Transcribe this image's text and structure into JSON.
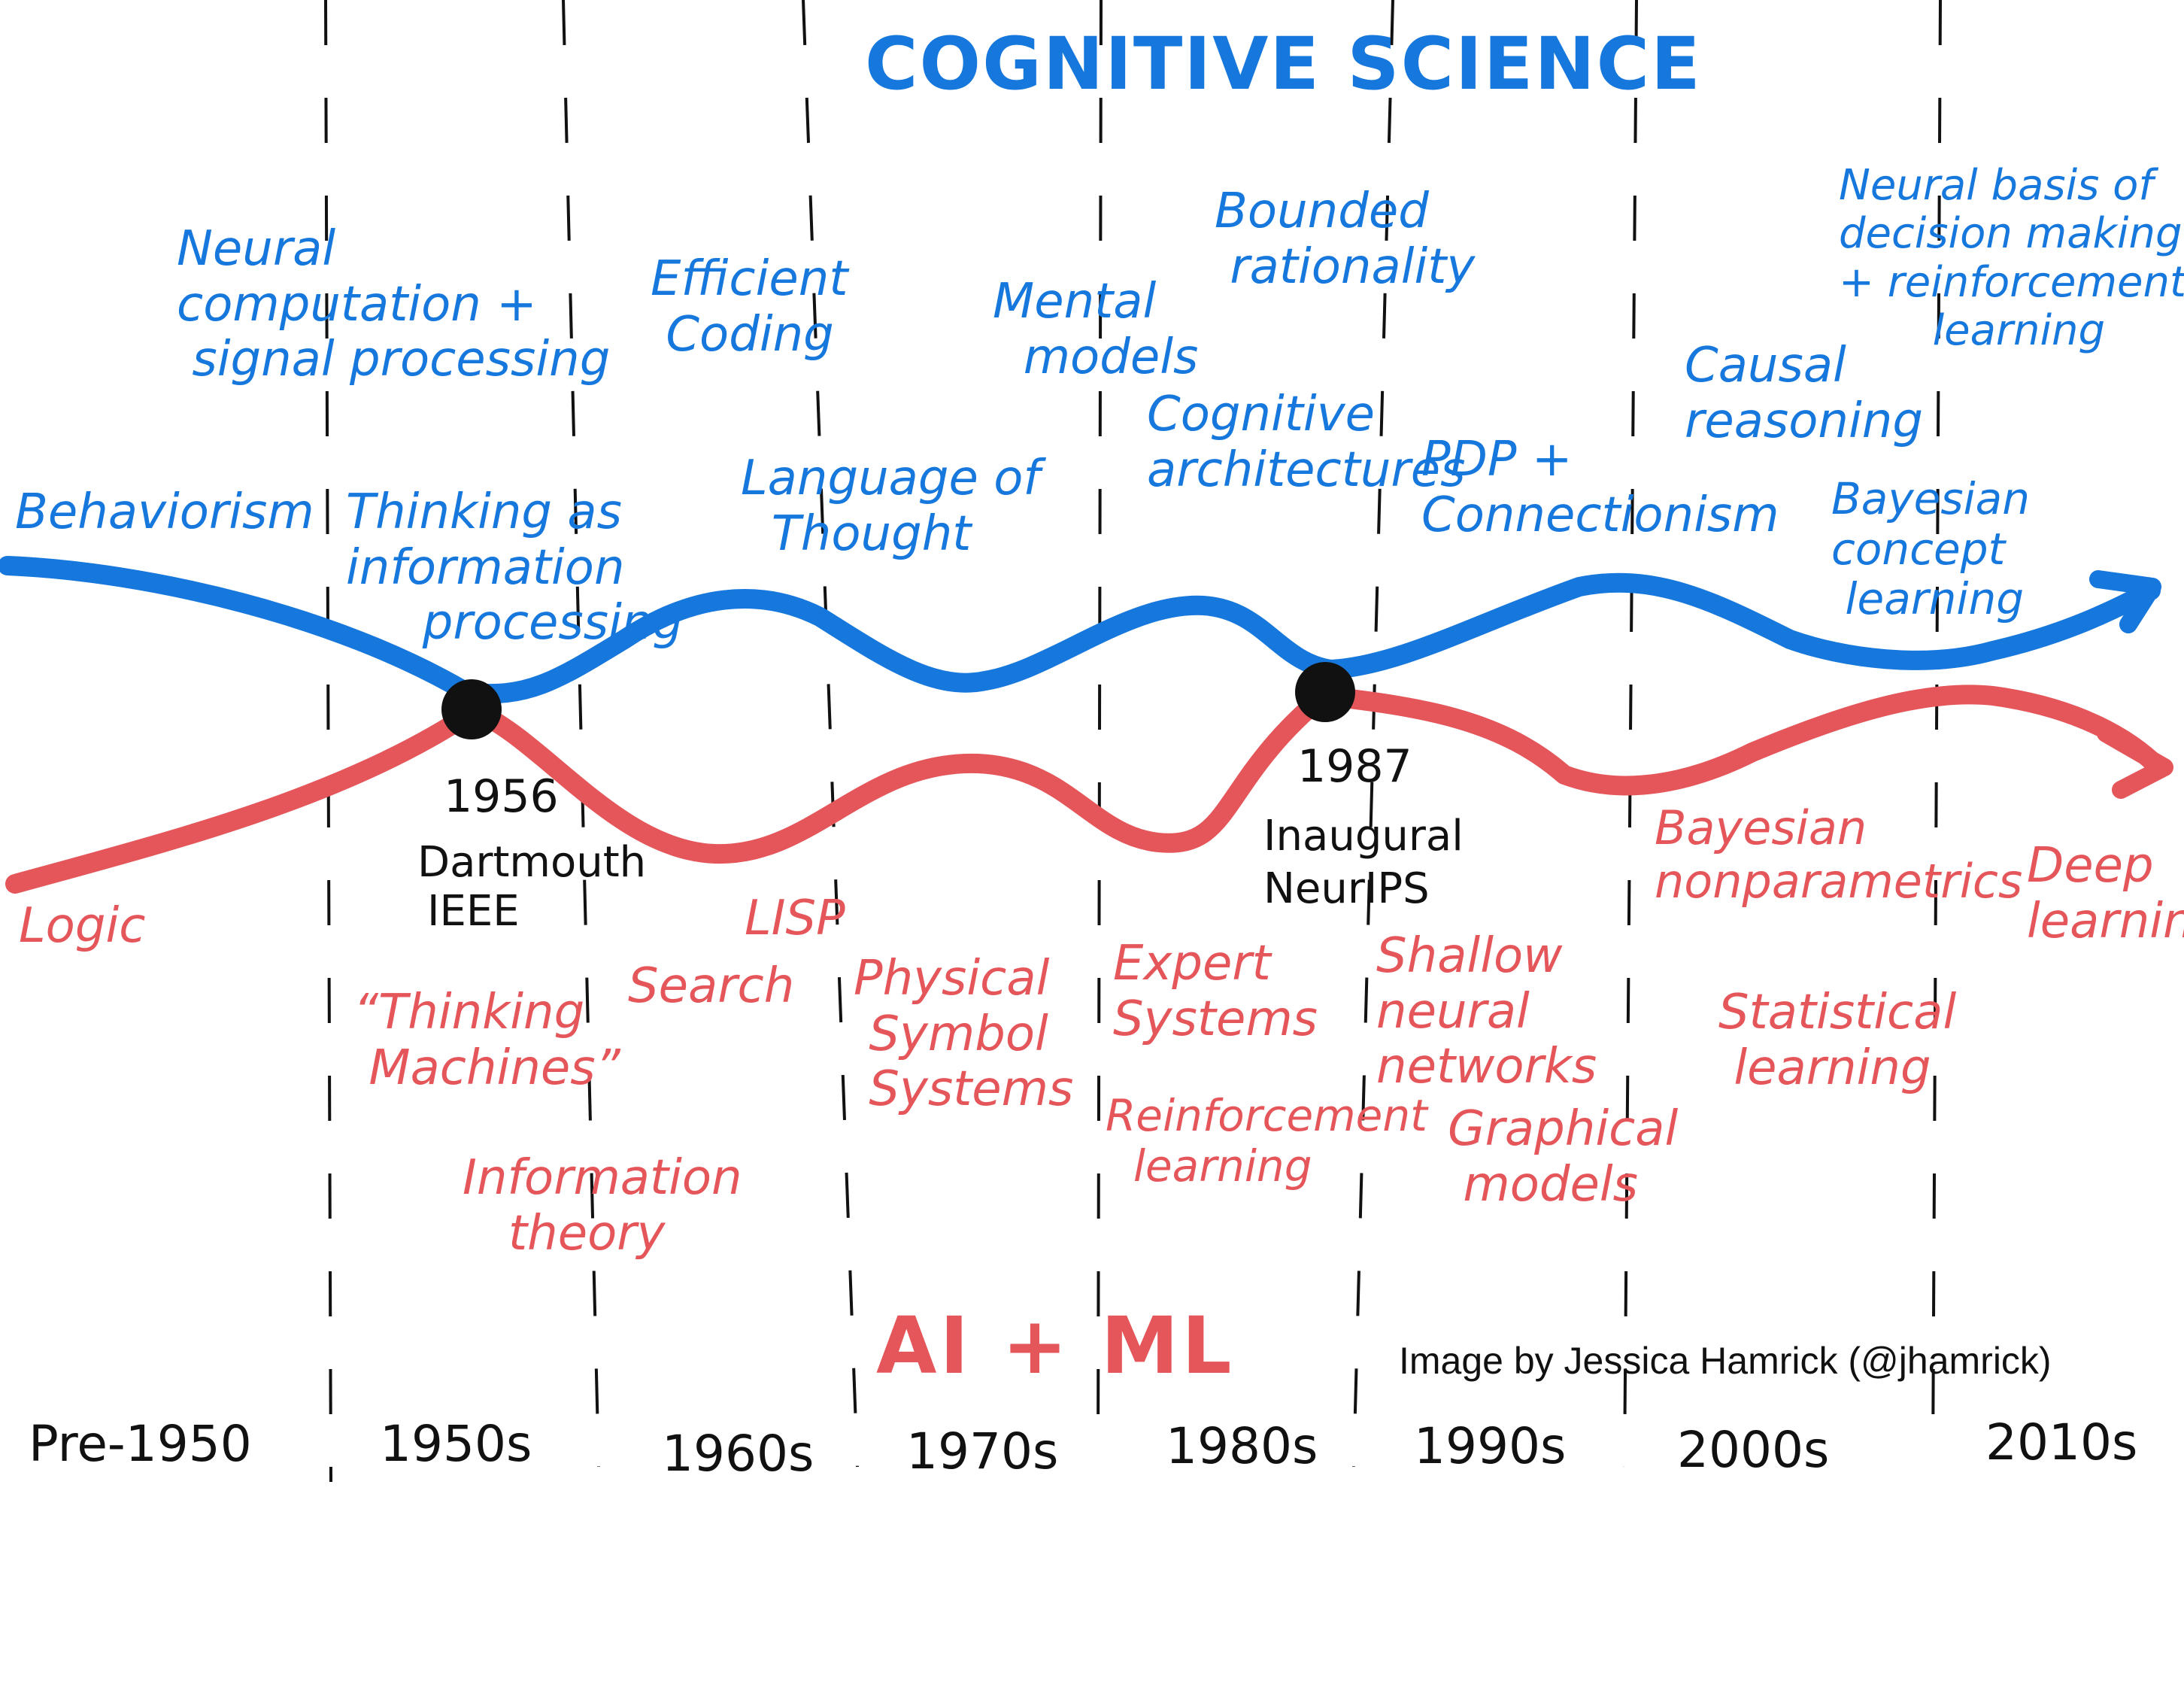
{
  "cogsci": {
    "title": "COGNITIVE SCIENCE",
    "topics": [
      "Neural\ncomputation +\n signal processing",
      "Behaviorism",
      "Thinking as\ninformation\n     processing",
      "Efficient\n Coding",
      "Language of\n  Thought",
      "Mental\n  models",
      "Bounded\n rationality",
      "Cognitive\narchitectures",
      "PDP +\nConnectionism",
      "Causal\nreasoning",
      "Neural basis of\ndecision making\n+ reinforcement\n       learning",
      "Bayesian\nconcept\n learning"
    ]
  },
  "ai_ml": {
    "title": "AI + ML",
    "topics": [
      "Logic",
      "“Thinking\n Machines”",
      "Information\n   theory",
      "Search",
      "LISP",
      "Physical\n Symbol\n Systems",
      "Expert\nSystems",
      "Reinforcement\n  learning",
      "Shallow\nneural\nnetworks",
      "Graphical\n models",
      "Bayesian\nnonparametrics",
      "Statistical\n learning",
      "Deep\nlearning"
    ]
  },
  "events": [
    {
      "year": "1956",
      "lines": [
        "Dartmouth",
        "IEEE"
      ]
    },
    {
      "year": "1987",
      "lines": [
        "Inaugural",
        "NeurIPS"
      ]
    }
  ],
  "decades": [
    "Pre-1950",
    "1950s",
    "1960s",
    "1970s",
    "1980s",
    "1990s",
    "2000s",
    "2010s"
  ],
  "credit": "Image by Jessica Hamrick (@jhamrick)",
  "colors": {
    "cogsci": "#1677dc",
    "ai_ml": "#e5565a",
    "text": "#111111"
  }
}
